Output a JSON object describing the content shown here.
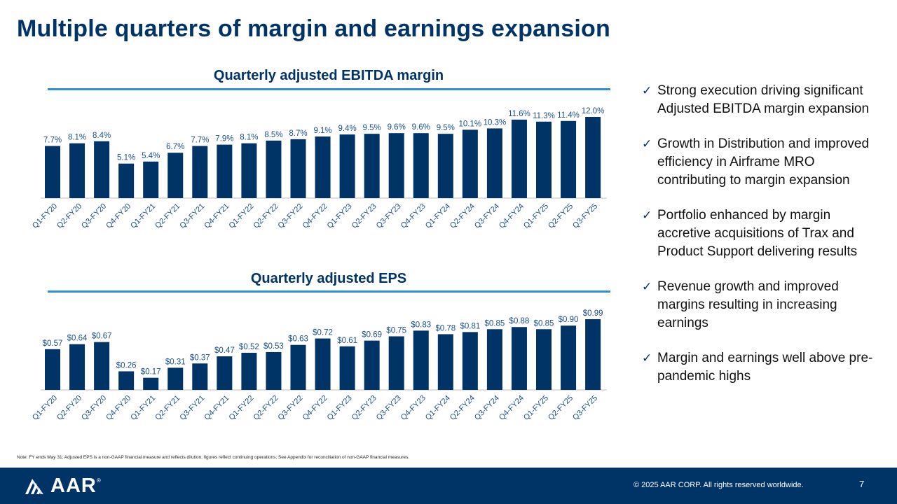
{
  "page": {
    "title": "Multiple quarters of margin and earnings expansion",
    "note": "Note: FY ends May 31; Adjusted EPS is a non-GAAP financial measure and reflects dilution; figures reflect continuing operations; See Appendix for reconciliation of non-GAAP financial measures.",
    "bullets": [
      "Strong execution driving significant Adjusted EBITDA margin expansion",
      "Growth in Distribution and improved efficiency in Airframe MRO contributing to margin expansion",
      "Portfolio enhanced by margin accretive acquisitions of Trax and Product Support delivering results",
      "Revenue growth and improved margins resulting in increasing earnings",
      "Margin and earnings well above pre-pandemic highs"
    ],
    "bullet_icon": "checkmark-icon",
    "footer": {
      "logo_text": "AAR",
      "logo_mark": "®",
      "copyright": "© 2025 AAR CORP. All rights reserved worldwide.",
      "page_number": "7"
    },
    "colors": {
      "bar": "#003366",
      "label": "#1a4f8a",
      "rule": "#2e8fd6",
      "footer": "#003366"
    }
  },
  "chart_data": [
    {
      "type": "bar",
      "title": "Quarterly adjusted EBITDA margin",
      "categories": [
        "Q1-FY20",
        "Q2-FY20",
        "Q3-FY20",
        "Q4-FY20",
        "Q1-FY21",
        "Q2-FY21",
        "Q3-FY21",
        "Q4-FY21",
        "Q1-FY22",
        "Q2-FY22",
        "Q3-FY22",
        "Q4-FY22",
        "Q1-FY23",
        "Q2-FY23",
        "Q3-FY23",
        "Q4-FY23",
        "Q1-FY24",
        "Q2-FY24",
        "Q3-FY24",
        "Q4-FY24",
        "Q1-FY25",
        "Q2-FY25",
        "Q3-FY25"
      ],
      "values": [
        7.7,
        8.1,
        8.4,
        5.1,
        5.4,
        6.7,
        7.7,
        7.9,
        8.1,
        8.5,
        8.7,
        9.1,
        9.4,
        9.5,
        9.6,
        9.6,
        9.5,
        10.1,
        10.3,
        11.6,
        11.3,
        11.4,
        12.0
      ],
      "labels": [
        "7.7%",
        "8.1%",
        "8.4%",
        "5.1%",
        "5.4%",
        "6.7%",
        "7.7%",
        "7.9%",
        "8.1%",
        "8.5%",
        "8.7%",
        "9.1%",
        "9.4%",
        "9.5%",
        "9.6%",
        "9.6%",
        "9.5%",
        "10.1%",
        "10.3%",
        "11.6%",
        "11.3%",
        "11.4%",
        "12.0%"
      ],
      "ylim": [
        0,
        12.0
      ],
      "xlabel": "",
      "ylabel": "",
      "grid": false
    },
    {
      "type": "bar",
      "title": "Quarterly adjusted EPS",
      "categories": [
        "Q1-FY20",
        "Q2-FY20",
        "Q3-FY20",
        "Q4-FY20",
        "Q1-FY21",
        "Q2-FY21",
        "Q3-FY21",
        "Q4-FY21",
        "Q1-FY22",
        "Q2-FY22",
        "Q3-FY22",
        "Q4-FY22",
        "Q1-FY23",
        "Q2-FY23",
        "Q3-FY23",
        "Q4-FY23",
        "Q1-FY24",
        "Q2-FY24",
        "Q3-FY24",
        "Q4-FY24",
        "Q1-FY25",
        "Q2-FY25",
        "Q3-FY25"
      ],
      "values": [
        0.57,
        0.64,
        0.67,
        0.26,
        0.17,
        0.31,
        0.37,
        0.47,
        0.52,
        0.53,
        0.63,
        0.72,
        0.61,
        0.69,
        0.75,
        0.83,
        0.78,
        0.81,
        0.85,
        0.88,
        0.85,
        0.9,
        0.99
      ],
      "labels": [
        "$0.57",
        "$0.64",
        "$0.67",
        "$0.26",
        "$0.17",
        "$0.31",
        "$0.37",
        "$0.47",
        "$0.52",
        "$0.53",
        "$0.63",
        "$0.72",
        "$0.61",
        "$0.69",
        "$0.75",
        "$0.83",
        "$0.78",
        "$0.81",
        "$0.85",
        "$0.88",
        "$0.85",
        "$0.90",
        "$0.99"
      ],
      "ylim": [
        0,
        0.99
      ],
      "xlabel": "",
      "ylabel": "",
      "grid": false
    }
  ]
}
